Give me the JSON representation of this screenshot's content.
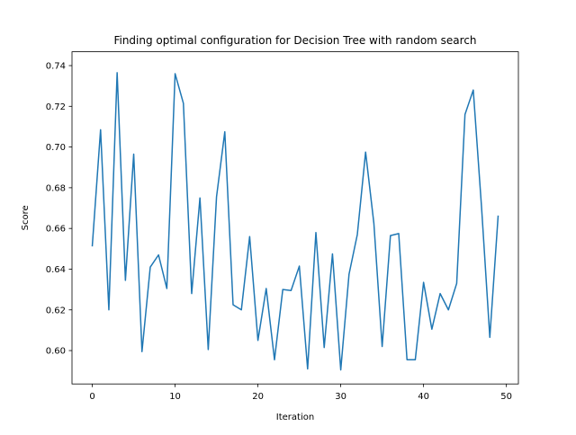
{
  "chart_data": {
    "type": "line",
    "title": "Finding optimal configuration for Decision Tree with random search",
    "xlabel": "Iteration",
    "ylabel": "Score",
    "xlim": [
      -2.45,
      51.45
    ],
    "ylim": [
      0.5836,
      0.7468
    ],
    "xticks": [
      0,
      10,
      20,
      30,
      40,
      50
    ],
    "yticks": [
      0.6,
      0.62,
      0.64,
      0.66,
      0.68,
      0.7,
      0.72,
      0.74
    ],
    "ytick_labels": [
      "0.60",
      "0.62",
      "0.64",
      "0.66",
      "0.68",
      "0.70",
      "0.72",
      "0.74"
    ],
    "grid": false,
    "line_color": "#1f77b4",
    "series": [
      {
        "x": [
          0,
          1,
          2,
          3,
          4,
          5,
          6,
          7,
          8,
          9,
          10,
          11,
          12,
          13,
          14,
          15,
          16,
          17,
          18,
          19,
          20,
          21,
          22,
          23,
          24,
          25,
          26,
          27,
          28,
          29,
          30,
          31,
          32,
          33,
          34,
          35,
          36,
          37,
          38,
          39,
          40,
          41,
          42,
          43,
          44,
          45,
          46,
          47,
          48,
          49
        ],
        "values": [
          0.6515,
          0.7085,
          0.62,
          0.7365,
          0.6345,
          0.6965,
          0.5995,
          0.641,
          0.647,
          0.6305,
          0.736,
          0.7215,
          0.628,
          0.675,
          0.6005,
          0.6755,
          0.7075,
          0.6225,
          0.62,
          0.656,
          0.605,
          0.6305,
          0.5955,
          0.63,
          0.6295,
          0.6415,
          0.591,
          0.658,
          0.6015,
          0.6475,
          0.5905,
          0.6375,
          0.657,
          0.6975,
          0.6625,
          0.602,
          0.6565,
          0.6575,
          0.5955,
          0.5955,
          0.6335,
          0.6105,
          0.628,
          0.62,
          0.633,
          0.716,
          0.728,
          0.6705,
          0.6065,
          0.666
        ]
      }
    ]
  }
}
